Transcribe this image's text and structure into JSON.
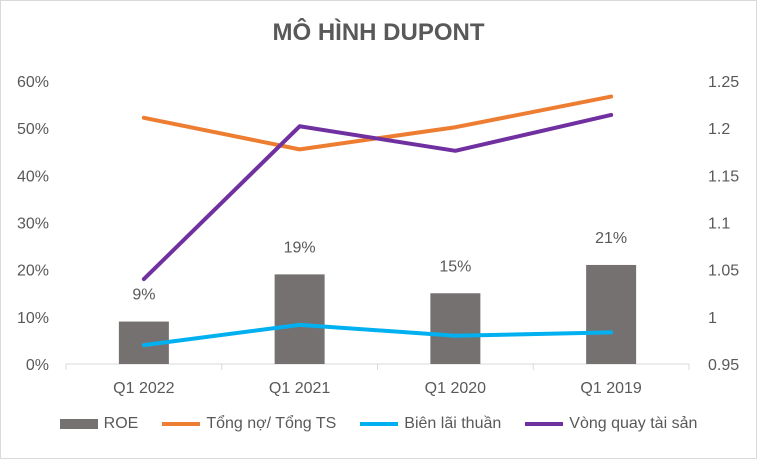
{
  "chart_data": {
    "type": "bar+line",
    "title": "MÔ HÌNH DUPONT",
    "categories": [
      "Q1 2022",
      "Q1 2021",
      "Q1 2020",
      "Q1 2019"
    ],
    "y_left": {
      "ticks": [
        "0%",
        "10%",
        "20%",
        "30%",
        "40%",
        "50%",
        "60%"
      ],
      "min": 0,
      "max": 0.6
    },
    "y_right": {
      "ticks": [
        "0.95",
        "1",
        "1.05",
        "1.1",
        "1.15",
        "1.2",
        "1.25"
      ],
      "min": 0.95,
      "max": 1.25
    },
    "series": [
      {
        "name": "ROE",
        "kind": "bar",
        "axis": "left",
        "color": "#767171",
        "values": [
          0.09,
          0.19,
          0.15,
          0.21
        ],
        "labels": [
          "9%",
          "19%",
          "15%",
          "21%"
        ]
      },
      {
        "name": "Tổng nợ/ Tổng TS",
        "kind": "line",
        "axis": "left",
        "color": "#ED7D31",
        "values": [
          0.522,
          0.455,
          0.502,
          0.567
        ]
      },
      {
        "name": "Biên lãi thuần",
        "kind": "line",
        "axis": "left",
        "color": "#00B0F0",
        "values": [
          0.04,
          0.083,
          0.06,
          0.067
        ]
      },
      {
        "name": "Vòng quay tài sản",
        "kind": "line",
        "axis": "right",
        "color": "#7030A0",
        "values": [
          1.04,
          1.202,
          1.176,
          1.214
        ]
      }
    ],
    "grid": false,
    "legend_position": "bottom"
  }
}
